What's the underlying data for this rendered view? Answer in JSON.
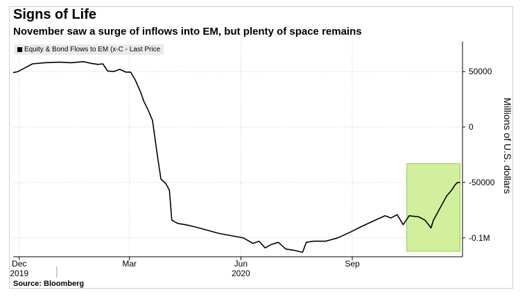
{
  "title": "Signs of Life",
  "subtitle": "November saw a surge of inflows into EM, but plenty of space remains",
  "source": "Source: Bloomberg",
  "legend": {
    "label": "Equity & Bond Flows to EM (x-C - Last Price"
  },
  "colors": {
    "line": "#000000",
    "highlight_fill": "#c9ec8c",
    "highlight_stroke": "#8cd13a",
    "grid": "#c8c8c8"
  },
  "chart_data": {
    "type": "line",
    "ylabel": "Millions of U.S. dollars",
    "ylim": [
      -117000,
      77000
    ],
    "xlim": [
      "2019-11-26",
      "2020-12-01"
    ],
    "y_ticks": [
      {
        "value": 50000,
        "label": "50000"
      },
      {
        "value": 0,
        "label": "0"
      },
      {
        "value": -50000,
        "label": "-50000"
      },
      {
        "value": -100000,
        "label": "-0.1M"
      }
    ],
    "x_ticks": [
      {
        "date": "2019-12-01",
        "label": "Dec",
        "year": "2019"
      },
      {
        "date": "2020-03-01",
        "label": "Mar",
        "year": ""
      },
      {
        "date": "2020-06-01",
        "label": "Jun",
        "year": "2020"
      },
      {
        "date": "2020-09-01",
        "label": "Sep",
        "year": ""
      }
    ],
    "grid": true,
    "legend_position": "top-left",
    "highlight_region": {
      "x": [
        "2020-10-16",
        "2020-11-29"
      ],
      "y": [
        -112000,
        -33000
      ]
    },
    "series": [
      {
        "name": "Equity & Bond Flows to EM (x-C - Last Price",
        "points": [
          [
            "2019-11-26",
            49000
          ],
          [
            "2019-11-30",
            50000
          ],
          [
            "2019-12-05",
            53000
          ],
          [
            "2019-12-12",
            57000
          ],
          [
            "2019-12-22",
            58000
          ],
          [
            "2020-01-03",
            58500
          ],
          [
            "2020-01-13",
            58000
          ],
          [
            "2020-01-23",
            59000
          ],
          [
            "2020-01-29",
            57500
          ],
          [
            "2020-02-04",
            56500
          ],
          [
            "2020-02-08",
            57000
          ],
          [
            "2020-02-12",
            50500
          ],
          [
            "2020-02-17",
            50000
          ],
          [
            "2020-02-22",
            52000
          ],
          [
            "2020-02-27",
            49500
          ],
          [
            "2020-03-02",
            49500
          ],
          [
            "2020-03-06",
            42000
          ],
          [
            "2020-03-10",
            32000
          ],
          [
            "2020-03-13",
            23000
          ],
          [
            "2020-03-17",
            14000
          ],
          [
            "2020-03-20",
            6000
          ],
          [
            "2020-03-24",
            -25000
          ],
          [
            "2020-03-27",
            -47000
          ],
          [
            "2020-03-31",
            -51000
          ],
          [
            "2020-04-03",
            -57000
          ],
          [
            "2020-04-05",
            -84000
          ],
          [
            "2020-04-10",
            -87000
          ],
          [
            "2020-04-16",
            -88000
          ],
          [
            "2020-04-24",
            -90000
          ],
          [
            "2020-05-04",
            -93000
          ],
          [
            "2020-05-14",
            -96000
          ],
          [
            "2020-05-24",
            -98000
          ],
          [
            "2020-06-03",
            -100000
          ],
          [
            "2020-06-11",
            -105000
          ],
          [
            "2020-06-16",
            -103000
          ],
          [
            "2020-06-21",
            -109000
          ],
          [
            "2020-06-26",
            -106000
          ],
          [
            "2020-07-02",
            -104000
          ],
          [
            "2020-07-08",
            -110000
          ],
          [
            "2020-07-14",
            -111000
          ],
          [
            "2020-07-18",
            -112000
          ],
          [
            "2020-07-22",
            -113000
          ],
          [
            "2020-07-25",
            -104000
          ],
          [
            "2020-07-31",
            -103000
          ],
          [
            "2020-08-10",
            -103000
          ],
          [
            "2020-08-20",
            -100000
          ],
          [
            "2020-08-30",
            -95000
          ],
          [
            "2020-09-08",
            -90000
          ],
          [
            "2020-09-18",
            -85000
          ],
          [
            "2020-09-28",
            -80000
          ],
          [
            "2020-10-03",
            -82000
          ],
          [
            "2020-10-08",
            -79000
          ],
          [
            "2020-10-13",
            -88000
          ],
          [
            "2020-10-18",
            -80000
          ],
          [
            "2020-10-26",
            -81000
          ],
          [
            "2020-10-31",
            -84000
          ],
          [
            "2020-11-05",
            -91000
          ],
          [
            "2020-11-07",
            -84000
          ],
          [
            "2020-11-10",
            -78000
          ],
          [
            "2020-11-14",
            -70000
          ],
          [
            "2020-11-18",
            -62000
          ],
          [
            "2020-11-22",
            -57000
          ],
          [
            "2020-11-25",
            -52000
          ],
          [
            "2020-11-27",
            -50000
          ],
          [
            "2020-11-29",
            -50000
          ]
        ]
      }
    ]
  }
}
